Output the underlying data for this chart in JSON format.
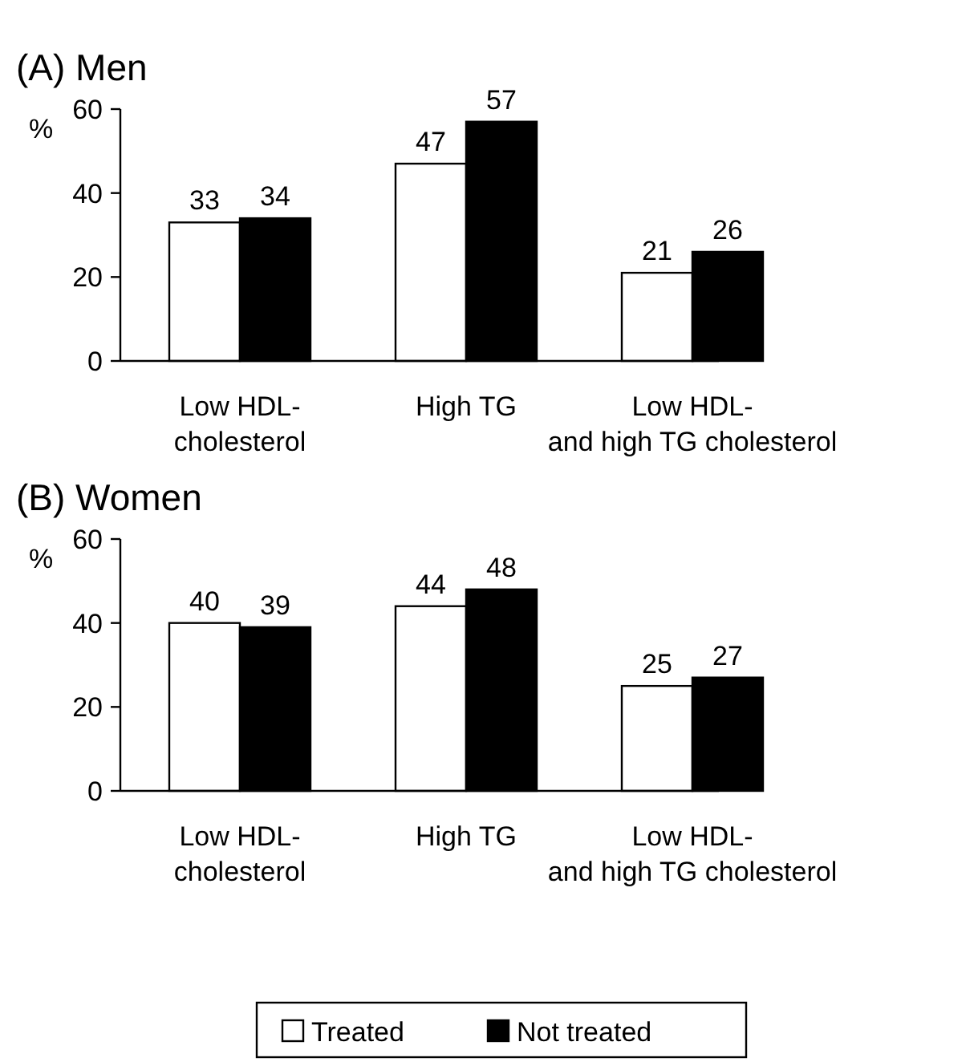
{
  "chart_data": [
    {
      "type": "bar",
      "title": "(A) Men",
      "ylabel": "%",
      "categories": [
        "Low HDL-\ncholesterol",
        "High TG",
        "Low HDL-\nand high TG cholesterol"
      ],
      "series": [
        {
          "color": "#ffffff",
          "values": [
            33,
            47,
            21
          ]
        },
        {
          "color": "#000000",
          "values": [
            34,
            57,
            26
          ]
        }
      ],
      "ylim": [
        0,
        60
      ],
      "yticks": [
        0,
        20,
        40,
        60
      ],
      "data_labels": true,
      "grid": false,
      "legend": false
    },
    {
      "type": "bar",
      "title": "(B) Women",
      "ylabel": "%",
      "categories": [
        "Low HDL-\ncholesterol",
        "High TG",
        "Low HDL-\nand high TG cholesterol"
      ],
      "series": [
        {
          "name": "Treated",
          "color": "#ffffff",
          "values": [
            40,
            44,
            25
          ]
        },
        {
          "name": "Not treated",
          "color": "#000000",
          "values": [
            39,
            48,
            27
          ]
        }
      ],
      "ylim": [
        0,
        60
      ],
      "yticks": [
        0,
        20,
        40,
        60
      ],
      "data_labels": true,
      "grid": false,
      "legend": "bottom"
    }
  ]
}
